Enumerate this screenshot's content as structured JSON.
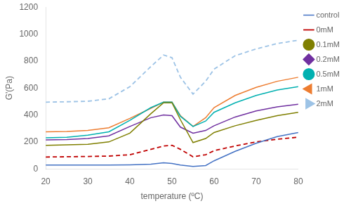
{
  "chart_data": {
    "type": "line",
    "x_label": "temperature (ºC)",
    "y_label": "G'(Pa)",
    "xlim": [
      20,
      80
    ],
    "ylim": [
      0,
      1200
    ],
    "xticks": [
      20,
      30,
      40,
      50,
      60,
      70,
      80
    ],
    "yticks": [
      0,
      200,
      400,
      600,
      800,
      1000,
      1200
    ],
    "grid": false,
    "legend": "right",
    "x": [
      20,
      25,
      30,
      35,
      40,
      45,
      48,
      50,
      52,
      55,
      58,
      60,
      65,
      70,
      75,
      80
    ],
    "series": [
      {
        "name": "control",
        "color": "#4472c4",
        "line_style": "solid",
        "values": [
          28,
          28,
          28,
          28,
          30,
          35,
          45,
          40,
          28,
          18,
          25,
          60,
          130,
          190,
          240,
          270
        ]
      },
      {
        "name": "0mM",
        "color": "#c00000",
        "line_style": "dashed",
        "values": [
          88,
          90,
          92,
          95,
          105,
          145,
          170,
          175,
          145,
          90,
          105,
          135,
          170,
          200,
          220,
          235
        ]
      },
      {
        "name": "0.1mM",
        "color": "#7f7f00",
        "line_style": "solid",
        "marker": "circle",
        "values": [
          175,
          178,
          182,
          200,
          265,
          410,
          490,
          490,
          365,
          195,
          225,
          270,
          320,
          360,
          395,
          420
        ]
      },
      {
        "name": "0.2mM",
        "color": "#7030a0",
        "line_style": "solid",
        "marker": "diamond",
        "values": [
          215,
          218,
          225,
          245,
          315,
          380,
          400,
          395,
          310,
          265,
          285,
          320,
          385,
          430,
          460,
          480
        ]
      },
      {
        "name": "0.5mM",
        "color": "#00b0b0",
        "line_style": "solid",
        "marker": "circle",
        "values": [
          230,
          235,
          250,
          275,
          360,
          455,
          495,
          495,
          390,
          315,
          355,
          420,
          490,
          545,
          585,
          610
        ]
      },
      {
        "name": "1mM",
        "color": "#ed7d31",
        "line_style": "solid",
        "marker": "triangle-left",
        "values": [
          275,
          278,
          285,
          305,
          375,
          450,
          495,
          495,
          395,
          315,
          380,
          455,
          545,
          605,
          650,
          680
        ]
      },
      {
        "name": "2mM",
        "color": "#9dc3e6",
        "line_style": "dashed",
        "marker": "triangle-right",
        "values": [
          495,
          498,
          502,
          520,
          610,
          760,
          845,
          825,
          680,
          555,
          650,
          740,
          840,
          890,
          930,
          955
        ]
      }
    ]
  }
}
